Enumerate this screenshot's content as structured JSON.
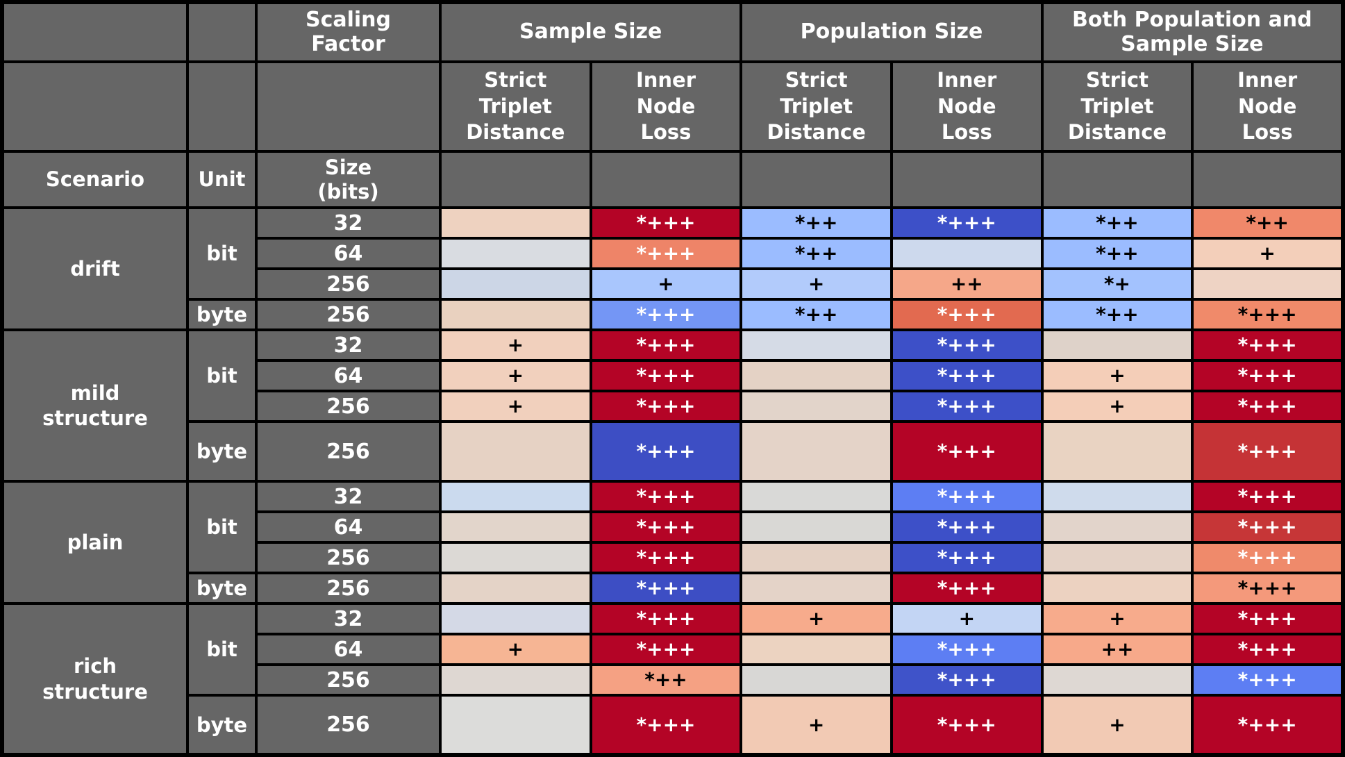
{
  "style": {
    "header_bg": "#666666",
    "header_fg": "#ffffff",
    "grid_color": "#000000",
    "strong_red": "#b40426",
    "strong_blue": "#3b4cc0"
  },
  "chart_data": {
    "type": "heatmap",
    "column_groups": [
      {
        "label": "Scaling\nFactor",
        "span": 1
      },
      {
        "label": "Sample Size",
        "span": 2
      },
      {
        "label": "Population Size",
        "span": 2
      },
      {
        "label": "Both Population and\nSample Size",
        "span": 2
      }
    ],
    "sub_columns": [
      "Strict\nTriplet\nDistance",
      "Inner\nNode\nLoss",
      "Strict\nTriplet\nDistance",
      "Inner\nNode\nLoss",
      "Strict\nTriplet\nDistance",
      "Inner\nNode\nLoss"
    ],
    "column_keys": [
      "sample-strict-triplet-distance",
      "sample-inner-node-loss",
      "population-strict-triplet-distance",
      "population-inner-node-loss",
      "both-strict-triplet-distance",
      "both-inner-node-loss"
    ],
    "row_headers": {
      "scenario": "Scenario",
      "unit": "Unit",
      "size": "Size\n(bits)"
    },
    "scenarios": [
      {
        "name": "drift",
        "units": [
          {
            "unit": "bit",
            "rows": [
              {
                "size": "32",
                "cells": [
                  {
                    "t": "",
                    "bg": "#eed2c0"
                  },
                  {
                    "t": "*+++",
                    "bg": "#b40426",
                    "fg": "#ffffff"
                  },
                  {
                    "t": "*++",
                    "bg": "#9bbcff",
                    "fg": "#000000"
                  },
                  {
                    "t": "*+++",
                    "bg": "#3d50c8",
                    "fg": "#ffffff"
                  },
                  {
                    "t": "*++",
                    "bg": "#9bbcff",
                    "fg": "#000000"
                  },
                  {
                    "t": "*++",
                    "bg": "#f0886a",
                    "fg": "#000000"
                  }
                ]
              },
              {
                "size": "64",
                "cells": [
                  {
                    "t": "",
                    "bg": "#d9dce1"
                  },
                  {
                    "t": "*+++",
                    "bg": "#ee8468",
                    "fg": "#ffffff"
                  },
                  {
                    "t": "*++",
                    "bg": "#9bbcff",
                    "fg": "#000000"
                  },
                  {
                    "t": "",
                    "bg": "#cdd9ed"
                  },
                  {
                    "t": "*++",
                    "bg": "#9bbcff",
                    "fg": "#000000"
                  },
                  {
                    "t": "+",
                    "bg": "#f3cfba",
                    "fg": "#000000"
                  }
                ]
              },
              {
                "size": "256",
                "cells": [
                  {
                    "t": "",
                    "bg": "#ccd6e6"
                  },
                  {
                    "t": "+",
                    "bg": "#a9c6fd",
                    "fg": "#000000"
                  },
                  {
                    "t": "+",
                    "bg": "#b2cbfb",
                    "fg": "#000000"
                  },
                  {
                    "t": "++",
                    "bg": "#f5a789",
                    "fg": "#000000"
                  },
                  {
                    "t": "*+",
                    "bg": "#a3c2fe",
                    "fg": "#000000"
                  },
                  {
                    "t": "",
                    "bg": "#eed3c4"
                  }
                ]
              }
            ]
          },
          {
            "unit": "byte",
            "rows": [
              {
                "size": "256",
                "cells": [
                  {
                    "t": "",
                    "bg": "#e9d1bf"
                  },
                  {
                    "t": "*+++",
                    "bg": "#7496f5",
                    "fg": "#ffffff"
                  },
                  {
                    "t": "*++",
                    "bg": "#9bbcff",
                    "fg": "#000000"
                  },
                  {
                    "t": "*+++",
                    "bg": "#e26a50",
                    "fg": "#ffffff"
                  },
                  {
                    "t": "*++",
                    "bg": "#9bbcff",
                    "fg": "#000000"
                  },
                  {
                    "t": "*+++",
                    "bg": "#f08a6a",
                    "fg": "#000000"
                  }
                ]
              }
            ]
          }
        ]
      },
      {
        "name": "mild\nstructure",
        "units": [
          {
            "unit": "bit",
            "rows": [
              {
                "size": "32",
                "cells": [
                  {
                    "t": "+",
                    "bg": "#f1d0bd",
                    "fg": "#000000"
                  },
                  {
                    "t": "*+++",
                    "bg": "#b40426",
                    "fg": "#ffffff"
                  },
                  {
                    "t": "",
                    "bg": "#d5dbe6"
                  },
                  {
                    "t": "*+++",
                    "bg": "#3d50c8",
                    "fg": "#ffffff"
                  },
                  {
                    "t": "",
                    "bg": "#ded2c9"
                  },
                  {
                    "t": "*+++",
                    "bg": "#b40426",
                    "fg": "#ffffff"
                  }
                ]
              },
              {
                "size": "64",
                "cells": [
                  {
                    "t": "+",
                    "bg": "#f1d0bd",
                    "fg": "#000000"
                  },
                  {
                    "t": "*+++",
                    "bg": "#b40426",
                    "fg": "#ffffff"
                  },
                  {
                    "t": "",
                    "bg": "#e4d2c5"
                  },
                  {
                    "t": "*+++",
                    "bg": "#3d50c8",
                    "fg": "#ffffff"
                  },
                  {
                    "t": "+",
                    "bg": "#f4ceb8",
                    "fg": "#000000"
                  },
                  {
                    "t": "*+++",
                    "bg": "#b40426",
                    "fg": "#ffffff"
                  }
                ]
              },
              {
                "size": "256",
                "cells": [
                  {
                    "t": "+",
                    "bg": "#f1d0bd",
                    "fg": "#000000"
                  },
                  {
                    "t": "*+++",
                    "bg": "#b40426",
                    "fg": "#ffffff"
                  },
                  {
                    "t": "",
                    "bg": "#e2d4ca"
                  },
                  {
                    "t": "*+++",
                    "bg": "#3d50c8",
                    "fg": "#ffffff"
                  },
                  {
                    "t": "+",
                    "bg": "#f4ceb8",
                    "fg": "#000000"
                  },
                  {
                    "t": "*+++",
                    "bg": "#b40426",
                    "fg": "#ffffff"
                  }
                ]
              }
            ]
          },
          {
            "unit": "byte",
            "rows": [
              {
                "size": "256",
                "tall": true,
                "cells": [
                  {
                    "t": "",
                    "bg": "#e6d2c4"
                  },
                  {
                    "t": "*+++",
                    "bg": "#3d4ec4",
                    "fg": "#ffffff"
                  },
                  {
                    "t": "",
                    "bg": "#e4d3c8"
                  },
                  {
                    "t": "*+++",
                    "bg": "#b40426",
                    "fg": "#ffffff"
                  },
                  {
                    "t": "",
                    "bg": "#e9d3c2"
                  },
                  {
                    "t": "*+++",
                    "bg": "#c53336",
                    "fg": "#ffffff"
                  }
                ]
              }
            ]
          }
        ]
      },
      {
        "name": "plain",
        "units": [
          {
            "unit": "bit",
            "rows": [
              {
                "size": "32",
                "cells": [
                  {
                    "t": "",
                    "bg": "#cbdaee"
                  },
                  {
                    "t": "*+++",
                    "bg": "#b40426",
                    "fg": "#ffffff"
                  },
                  {
                    "t": "",
                    "bg": "#d9d9d7"
                  },
                  {
                    "t": "*+++",
                    "bg": "#5d7ef3",
                    "fg": "#ffffff"
                  },
                  {
                    "t": "",
                    "bg": "#cfdbec"
                  },
                  {
                    "t": "*+++",
                    "bg": "#b40426",
                    "fg": "#ffffff"
                  }
                ]
              },
              {
                "size": "64",
                "cells": [
                  {
                    "t": "",
                    "bg": "#e2d5cb"
                  },
                  {
                    "t": "*+++",
                    "bg": "#b40426",
                    "fg": "#ffffff"
                  },
                  {
                    "t": "",
                    "bg": "#d9d8d5"
                  },
                  {
                    "t": "*+++",
                    "bg": "#3d50c8",
                    "fg": "#ffffff"
                  },
                  {
                    "t": "",
                    "bg": "#e2d4cb"
                  },
                  {
                    "t": "*+++",
                    "bg": "#c63637",
                    "fg": "#ffffff"
                  }
                ]
              },
              {
                "size": "256",
                "cells": [
                  {
                    "t": "",
                    "bg": "#dcd9d5"
                  },
                  {
                    "t": "*+++",
                    "bg": "#b40426",
                    "fg": "#ffffff"
                  },
                  {
                    "t": "",
                    "bg": "#e4d1c4"
                  },
                  {
                    "t": "*+++",
                    "bg": "#3d50c8",
                    "fg": "#ffffff"
                  },
                  {
                    "t": "",
                    "bg": "#e4d2c6"
                  },
                  {
                    "t": "*+++",
                    "bg": "#ef8a6b",
                    "fg": "#ffffff"
                  }
                ]
              }
            ]
          },
          {
            "unit": "byte",
            "rows": [
              {
                "size": "256",
                "cells": [
                  {
                    "t": "",
                    "bg": "#e4d3c7"
                  },
                  {
                    "t": "*+++",
                    "bg": "#3d4ec4",
                    "fg": "#ffffff"
                  },
                  {
                    "t": "",
                    "bg": "#e4d3c8"
                  },
                  {
                    "t": "*+++",
                    "bg": "#b40426",
                    "fg": "#ffffff"
                  },
                  {
                    "t": "",
                    "bg": "#ecd2c1"
                  },
                  {
                    "t": "*+++",
                    "bg": "#f4997b",
                    "fg": "#000000"
                  }
                ]
              }
            ]
          }
        ]
      },
      {
        "name": "rich\nstructure",
        "units": [
          {
            "unit": "bit",
            "rows": [
              {
                "size": "32",
                "cells": [
                  {
                    "t": "",
                    "bg": "#d4d9e6"
                  },
                  {
                    "t": "*+++",
                    "bg": "#b40426",
                    "fg": "#ffffff"
                  },
                  {
                    "t": "+",
                    "bg": "#f7ab8c",
                    "fg": "#000000"
                  },
                  {
                    "t": "+",
                    "bg": "#c3d5f4",
                    "fg": "#000000"
                  },
                  {
                    "t": "+",
                    "bg": "#f7ab8c",
                    "fg": "#000000"
                  },
                  {
                    "t": "*+++",
                    "bg": "#b40426",
                    "fg": "#ffffff"
                  }
                ]
              },
              {
                "size": "64",
                "cells": [
                  {
                    "t": "+",
                    "bg": "#f6b594",
                    "fg": "#000000"
                  },
                  {
                    "t": "*+++",
                    "bg": "#b40426",
                    "fg": "#ffffff"
                  },
                  {
                    "t": "",
                    "bg": "#ecd3c1"
                  },
                  {
                    "t": "*+++",
                    "bg": "#5d7ef3",
                    "fg": "#ffffff"
                  },
                  {
                    "t": "++",
                    "bg": "#f7a98a",
                    "fg": "#000000"
                  },
                  {
                    "t": "*+++",
                    "bg": "#b40426",
                    "fg": "#ffffff"
                  }
                ]
              },
              {
                "size": "256",
                "cells": [
                  {
                    "t": "",
                    "bg": "#ded7d2"
                  },
                  {
                    "t": "*++",
                    "bg": "#f5a183",
                    "fg": "#000000"
                  },
                  {
                    "t": "",
                    "bg": "#d8d7d5"
                  },
                  {
                    "t": "*+++",
                    "bg": "#3f53c9",
                    "fg": "#ffffff"
                  },
                  {
                    "t": "",
                    "bg": "#ded8d3"
                  },
                  {
                    "t": "*+++",
                    "bg": "#5d7ef3",
                    "fg": "#ffffff"
                  }
                ]
              }
            ]
          },
          {
            "unit": "byte",
            "rows": [
              {
                "size": "256",
                "tall": true,
                "cells": [
                  {
                    "t": "",
                    "bg": "#dcdcda"
                  },
                  {
                    "t": "*+++",
                    "bg": "#b40426",
                    "fg": "#ffffff"
                  },
                  {
                    "t": "+",
                    "bg": "#f2cab4",
                    "fg": "#000000"
                  },
                  {
                    "t": "*+++",
                    "bg": "#b40426",
                    "fg": "#ffffff"
                  },
                  {
                    "t": "+",
                    "bg": "#f2cab4",
                    "fg": "#000000"
                  },
                  {
                    "t": "*+++",
                    "bg": "#b40426",
                    "fg": "#ffffff"
                  }
                ]
              }
            ]
          }
        ]
      }
    ]
  }
}
